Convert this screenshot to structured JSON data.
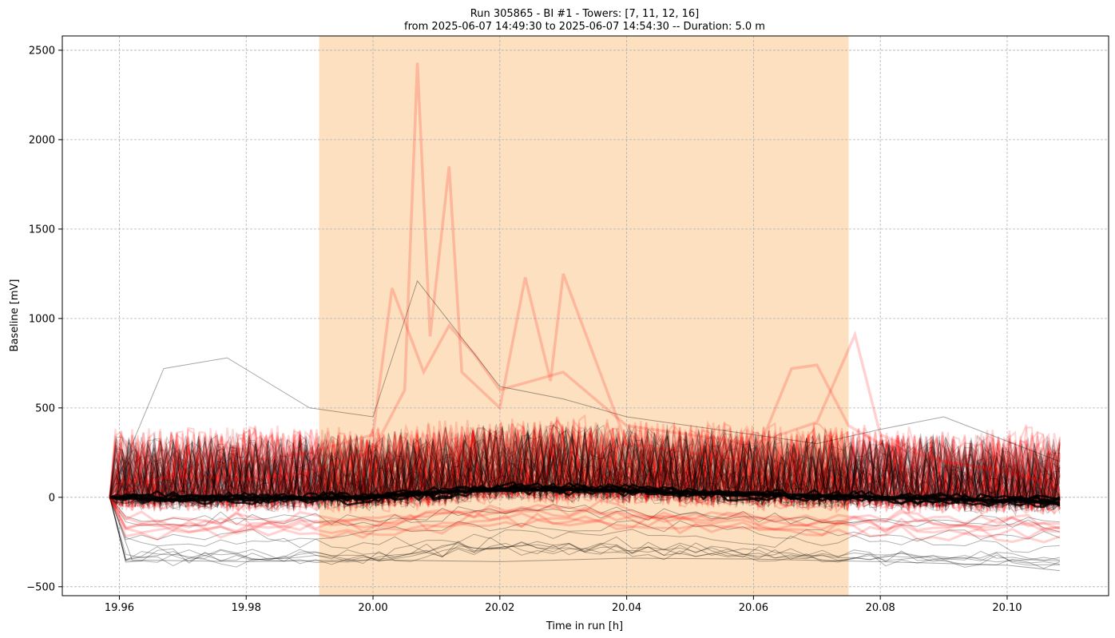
{
  "chart_data": {
    "type": "line",
    "title_line1": "Run 305865  -  BI #1  -  Towers: [7, 11, 12, 16]",
    "title_line2": "from  2025-06-07 14:49:30  to  2025-06-07 14:54:30 -- Duration: 5.0 m",
    "xlabel": "Time in run [h]",
    "ylabel": "Baseline [mV]",
    "xlim": [
      19.951,
      20.116
    ],
    "ylim": [
      -550,
      2580
    ],
    "x_ticks": [
      19.96,
      19.98,
      20.0,
      20.02,
      20.04,
      20.06,
      20.08,
      20.1
    ],
    "x_tick_labels": [
      "19.96",
      "19.98",
      "20.00",
      "20.02",
      "20.04",
      "20.06",
      "20.08",
      "20.10"
    ],
    "y_ticks": [
      -500,
      0,
      500,
      1000,
      1500,
      2000,
      2500
    ],
    "y_tick_labels": [
      "−500",
      "0",
      "500",
      "1000",
      "1500",
      "2000",
      "2500"
    ],
    "grid": true,
    "highlight_span": {
      "x_start": 19.9915,
      "x_end": 20.075,
      "color": "#fde0bf"
    },
    "x_range_of_traces": [
      19.9585,
      20.1083
    ],
    "series_colors": {
      "red_group": "#ff0000",
      "black_group": "#000000"
    },
    "series": [
      {
        "name": "",
        "group": "red",
        "x": [
          19.9585,
          19.96,
          19.97,
          19.98,
          19.99,
          20.0,
          20.005,
          20.007,
          20.009,
          20.012,
          20.014,
          20.02,
          20.024,
          20.028,
          20.03,
          20.04,
          20.05,
          20.06,
          20.066,
          20.07,
          20.075,
          20.08,
          20.09,
          20.1,
          20.1083
        ],
        "y": [
          0,
          80,
          120,
          100,
          140,
          260,
          600,
          2430,
          900,
          1850,
          700,
          500,
          1230,
          650,
          1250,
          300,
          250,
          200,
          720,
          740,
          400,
          300,
          200,
          150,
          50
        ]
      },
      {
        "name": "",
        "group": "red",
        "x": [
          19.9585,
          19.97,
          19.98,
          19.99,
          20.0,
          20.003,
          20.008,
          20.012,
          20.016,
          20.02,
          20.03,
          20.04,
          20.05,
          20.06,
          20.07,
          20.076,
          20.08,
          20.09,
          20.1083
        ],
        "y": [
          0,
          150,
          200,
          250,
          350,
          1170,
          700,
          960,
          800,
          600,
          700,
          400,
          350,
          300,
          420,
          910,
          350,
          200,
          80
        ]
      },
      {
        "name": "",
        "group": "black",
        "x": [
          19.9585,
          19.967,
          19.977,
          19.99,
          20.0,
          20.007,
          20.02,
          20.03,
          20.04,
          20.05,
          20.06,
          20.07,
          20.08,
          20.09,
          20.1083
        ],
        "y": [
          0,
          720,
          780,
          500,
          450,
          1210,
          620,
          550,
          450,
          400,
          350,
          300,
          380,
          450,
          200
        ]
      },
      {
        "name": "",
        "group": "black",
        "x": [
          19.9585,
          19.962,
          19.98,
          20.0,
          20.02,
          20.04,
          20.06,
          20.08,
          20.1,
          20.1083
        ],
        "y": [
          0,
          -350,
          -360,
          -350,
          -360,
          -340,
          -345,
          -360,
          -380,
          -410
        ]
      },
      {
        "name": "",
        "group": "black",
        "x": [
          19.9585,
          19.97,
          19.99,
          20.0,
          20.01,
          20.03,
          20.05,
          20.07,
          20.09,
          20.1083
        ],
        "y": [
          0,
          -15,
          -5,
          0,
          30,
          45,
          25,
          10,
          -10,
          -30
        ]
      }
    ]
  }
}
